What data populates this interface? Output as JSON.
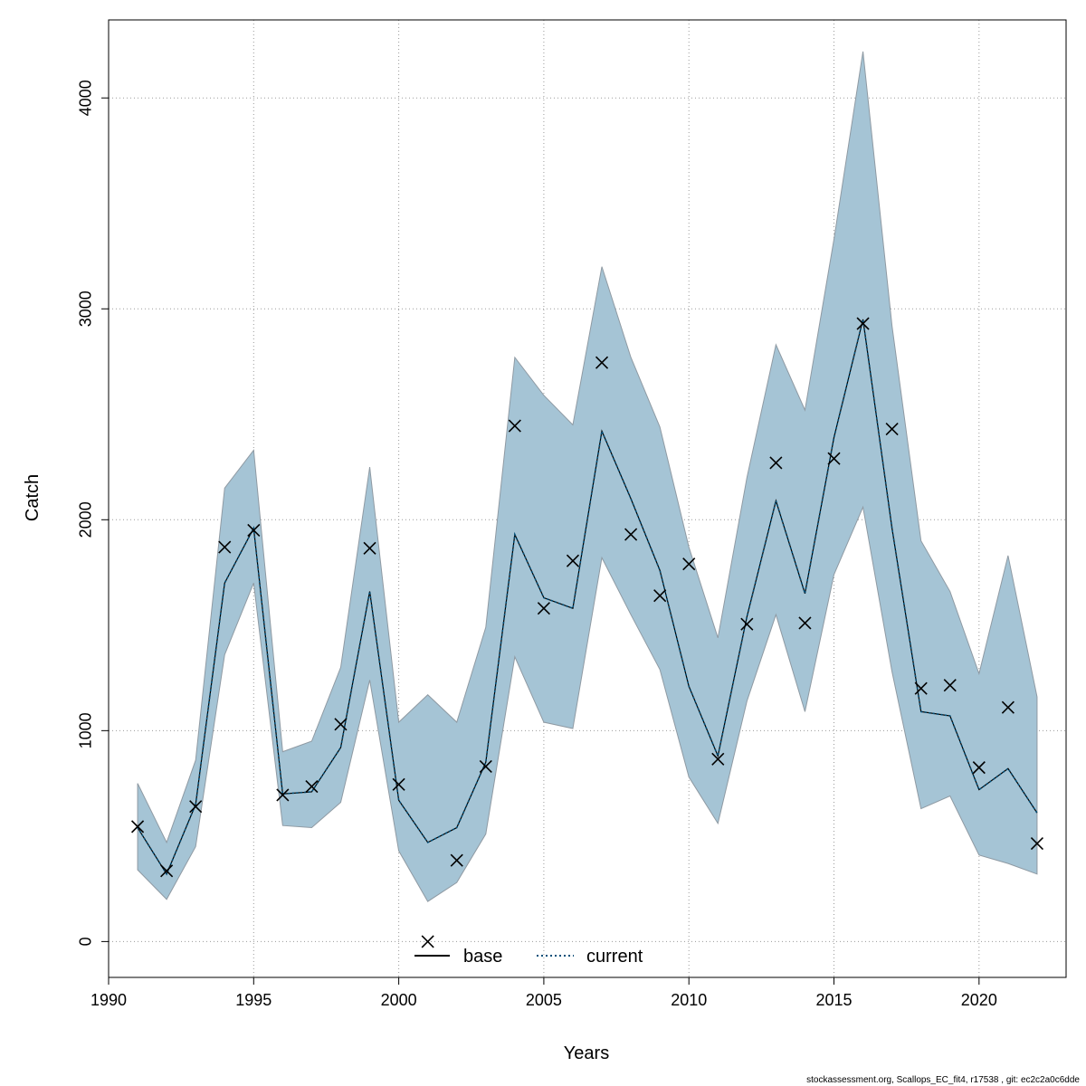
{
  "chart_data": {
    "type": "line",
    "xlabel": "Years",
    "ylabel": "Catch",
    "xlim": [
      1990,
      2023
    ],
    "ylim": [
      -170,
      4370
    ],
    "x_ticks": [
      1990,
      1995,
      2000,
      2005,
      2010,
      2015,
      2020
    ],
    "y_ticks": [
      0,
      1000,
      2000,
      3000,
      4000
    ],
    "grid": true,
    "legend_position": "bottom-center",
    "legend": [
      {
        "name": "base",
        "style": "solid",
        "color": "#000000"
      },
      {
        "name": "current",
        "style": "dotted",
        "color": "#00507a"
      }
    ],
    "band_color": "#a5c4d5",
    "band_edge_color": "#8f9aa3",
    "x": [
      1991,
      1992,
      1993,
      1994,
      1995,
      1996,
      1997,
      1998,
      1999,
      2000,
      2001,
      2002,
      2003,
      2004,
      2005,
      2006,
      2007,
      2008,
      2009,
      2010,
      2011,
      2012,
      2013,
      2014,
      2015,
      2016,
      2017,
      2018,
      2019,
      2020,
      2021,
      2022
    ],
    "band_upper": [
      750,
      470,
      860,
      2150,
      2330,
      900,
      950,
      1300,
      2250,
      1040,
      1170,
      1040,
      1490,
      2770,
      2590,
      2450,
      3200,
      2770,
      2440,
      1870,
      1440,
      2200,
      2830,
      2520,
      3330,
      4220,
      2920,
      1900,
      1660,
      1270,
      1830,
      1160
    ],
    "band_lower": [
      340,
      200,
      450,
      1360,
      1700,
      550,
      540,
      660,
      1240,
      430,
      190,
      280,
      510,
      1350,
      1040,
      1010,
      1820,
      1550,
      1290,
      780,
      560,
      1140,
      1550,
      1090,
      1740,
      2060,
      1280,
      630,
      690,
      410,
      370,
      320
    ],
    "series": [
      {
        "name": "current",
        "values": [
          540,
          320,
          650,
          1700,
          1960,
          700,
          710,
          920,
          1660,
          670,
          470,
          540,
          850,
          1930,
          1630,
          1580,
          2420,
          2100,
          1760,
          1210,
          880,
          1540,
          2090,
          1650,
          2390,
          2950,
          1960,
          1090,
          1070,
          720,
          820,
          610
        ]
      }
    ],
    "observed": [
      545,
      335,
      640,
      1870,
      1950,
      695,
      735,
      1030,
      1865,
      745,
      0,
      385,
      830,
      2445,
      1580,
      1805,
      2745,
      1930,
      1640,
      1790,
      865,
      1505,
      2270,
      1510,
      2290,
      2930,
      2430,
      1200,
      1215,
      825,
      1110,
      465
    ]
  },
  "footer": {
    "text": "stockassessment.org, Scallops_EC_fit4, r17538 , git: ec2c2a0c6dde"
  }
}
